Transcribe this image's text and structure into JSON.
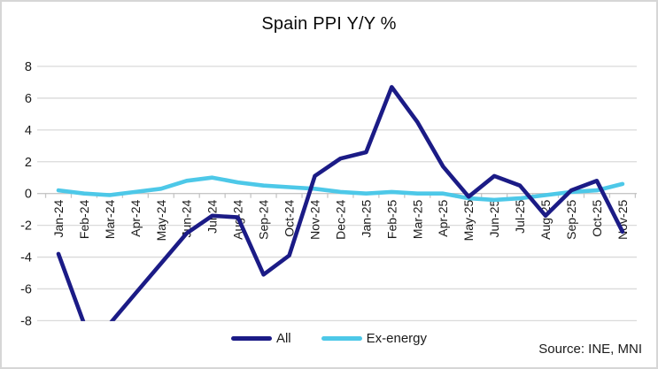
{
  "chart_data": {
    "type": "line",
    "title": "Spain PPI Y/Y %",
    "categories": [
      "Jan-24",
      "Feb-24",
      "Mar-24",
      "Apr-24",
      "May-24",
      "Jun-24",
      "Jul-24",
      "Aug-24",
      "Sep-24",
      "Oct-24",
      "Nov-24",
      "Dec-24",
      "Jan-25",
      "Feb-25",
      "Mar-25",
      "Apr-25",
      "May-25",
      "Jun-25",
      "Jul-25",
      "Aug-25",
      "Sep-25",
      "Oct-25",
      "Nov-25"
    ],
    "series": [
      {
        "name": "All",
        "color": "#1b1b86",
        "values": [
          -3.8,
          -8.2,
          -8.2,
          -6.3,
          -4.4,
          -2.5,
          -1.4,
          -1.5,
          -5.1,
          -3.9,
          1.1,
          2.2,
          2.6,
          6.7,
          4.5,
          1.7,
          -0.2,
          1.1,
          0.5,
          -1.4,
          0.2,
          0.8,
          -2.4
        ]
      },
      {
        "name": "Ex-energy",
        "color": "#4dc8e8",
        "values": [
          0.2,
          0.0,
          -0.1,
          0.1,
          0.3,
          0.8,
          1.0,
          0.7,
          0.5,
          0.4,
          0.3,
          0.1,
          0.0,
          0.1,
          0.0,
          0.0,
          -0.3,
          -0.4,
          -0.3,
          -0.1,
          0.1,
          0.2,
          0.6
        ]
      }
    ],
    "ylim": [
      -8,
      8
    ],
    "ytick_step": 2,
    "y_ticks": [
      8,
      6,
      4,
      2,
      0,
      -2,
      -4,
      -6,
      -8
    ],
    "grid": "horizontal",
    "grid_color": "#dadada",
    "axis_color": "#c6c6c6",
    "label_color": "#1a1a1a",
    "legend_position": "bottom-center",
    "x_label_rotation": -90,
    "values_below_ymin_clipped": true
  },
  "source": "Source: INE, MNI"
}
